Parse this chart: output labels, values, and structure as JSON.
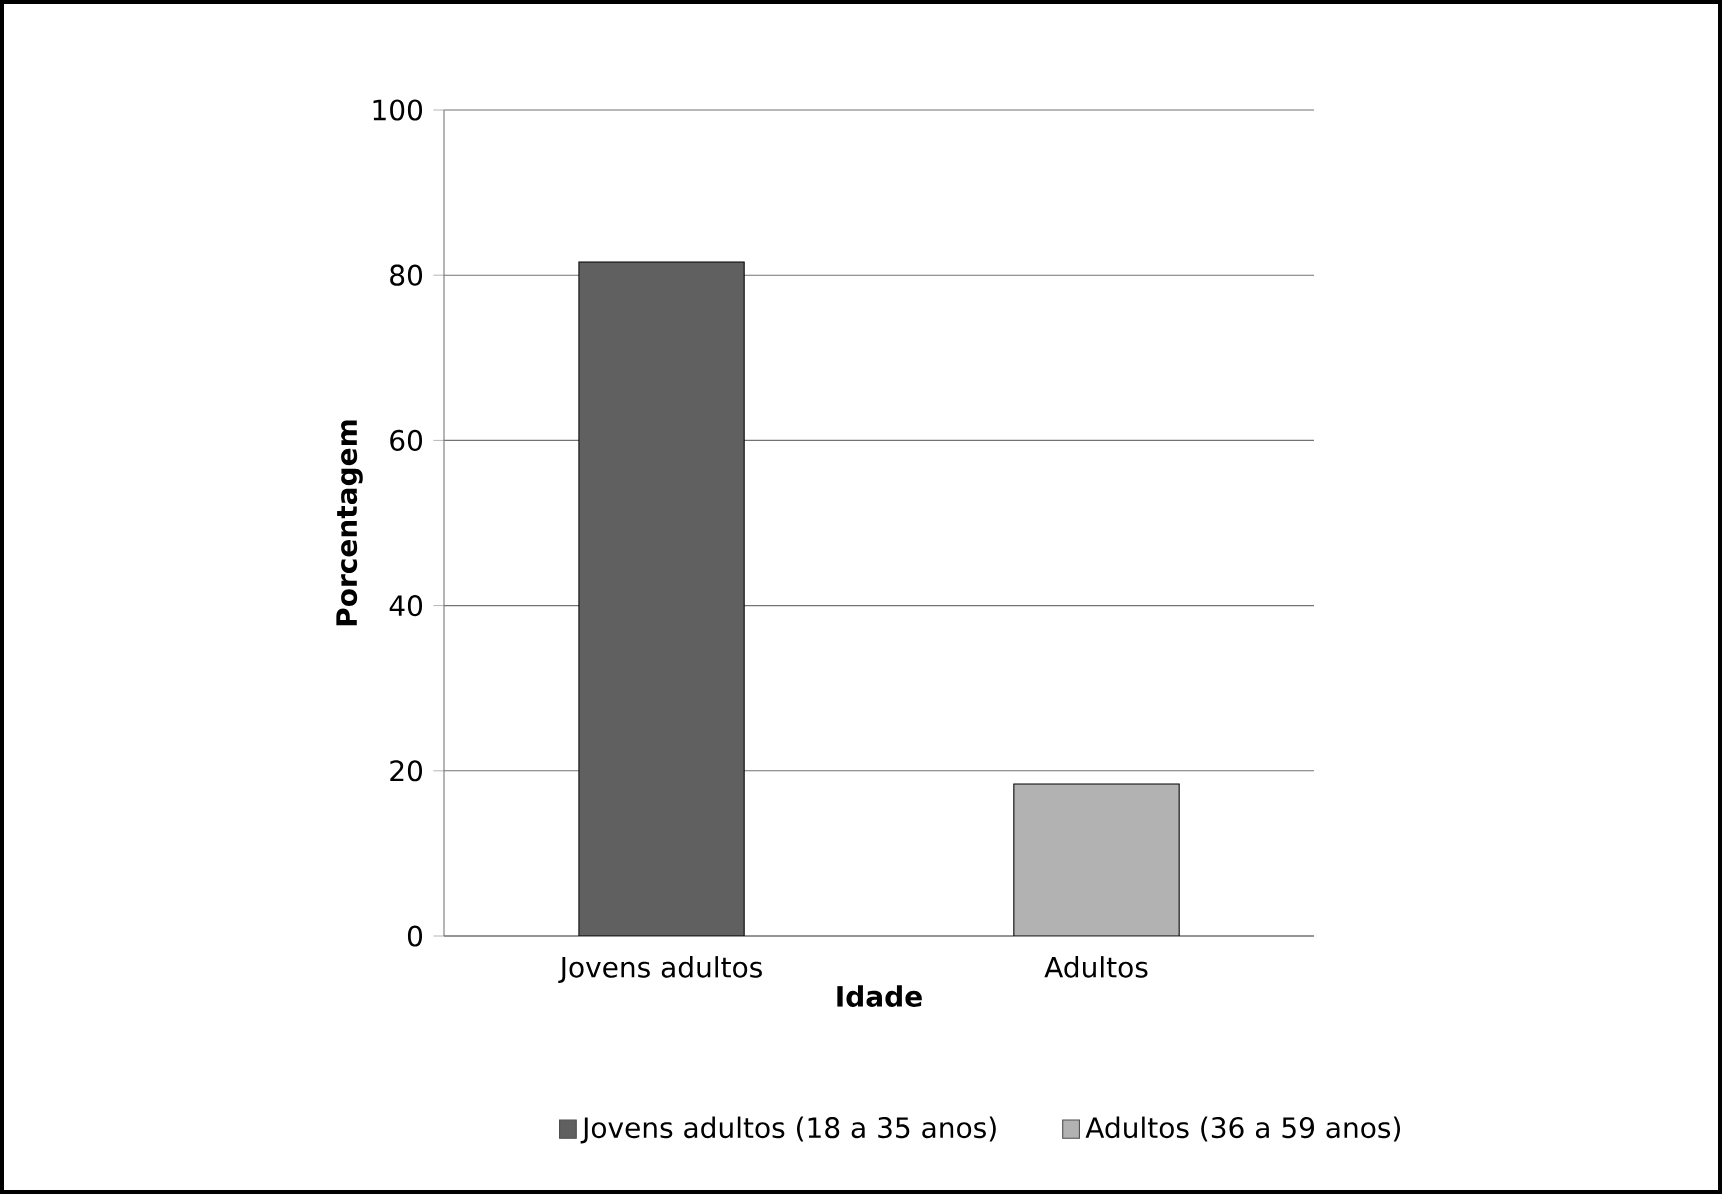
{
  "chart_data": {
    "type": "bar",
    "xlabel": "Idade",
    "ylabel": "Porcentagem",
    "categories": [
      "Jovens adultos",
      "Adultos"
    ],
    "series": [
      {
        "name": "Jovens adultos (18 a 35 anos)",
        "color": "#606060",
        "values": [
          81.6,
          null
        ]
      },
      {
        "name": "Adultos (36 a 59 anos)",
        "color": "#b2b2b2",
        "values": [
          null,
          18.4
        ]
      }
    ],
    "ylim": [
      0,
      100
    ],
    "yticks": [
      0,
      20,
      40,
      60,
      80,
      100
    ],
    "grid": "y",
    "legend": "bottom"
  }
}
